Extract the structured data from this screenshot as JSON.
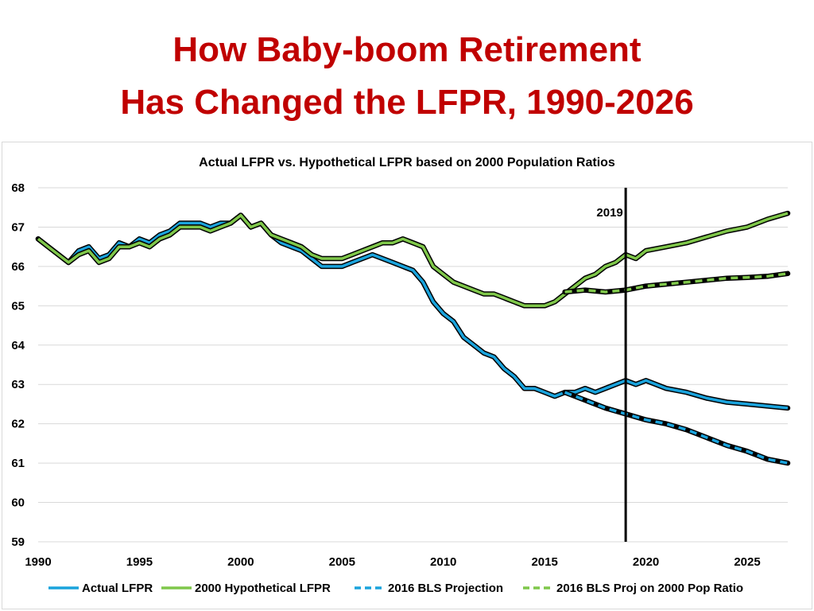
{
  "slide": {
    "title_line1": "How Baby-boom Retirement",
    "title_line2": "Has Changed the LFPR, 1990-2026"
  },
  "chart_data": {
    "type": "line",
    "subtitle": "Actual LFPR vs. Hypothetical LFPR based on 2000 Population Ratios",
    "xlabel": "",
    "ylabel": "",
    "xlim": [
      1990,
      2027
    ],
    "ylim": [
      59,
      68
    ],
    "x_ticks": [
      1990,
      1995,
      2000,
      2005,
      2010,
      2015,
      2020,
      2025
    ],
    "y_ticks": [
      59,
      60,
      61,
      62,
      63,
      64,
      65,
      66,
      67,
      68
    ],
    "grid": "horizontal",
    "legend_position": "bottom",
    "vline": {
      "x": 2019,
      "label": "2019"
    },
    "series": [
      {
        "name": "Actual LFPR",
        "color": "#1aa3dc",
        "style": "solid",
        "x": [
          1990.0,
          1990.5,
          1991.0,
          1991.5,
          1992.0,
          1992.5,
          1993.0,
          1993.5,
          1994.0,
          1994.5,
          1995.0,
          1995.5,
          1996.0,
          1996.5,
          1997.0,
          1997.5,
          1998.0,
          1998.5,
          1999.0,
          1999.5,
          2000.0,
          2000.5,
          2001.0,
          2001.5,
          2002.0,
          2002.5,
          2003.0,
          2003.5,
          2004.0,
          2004.5,
          2005.0,
          2005.5,
          2006.0,
          2006.5,
          2007.0,
          2007.5,
          2008.0,
          2008.5,
          2009.0,
          2009.5,
          2010.0,
          2010.5,
          2011.0,
          2011.5,
          2012.0,
          2012.5,
          2013.0,
          2013.5,
          2014.0,
          2014.5,
          2015.0,
          2015.5,
          2016.0,
          2016.5,
          2017.0,
          2017.5,
          2018.0,
          2018.5,
          2019.0,
          2019.5,
          2020.0,
          2021.0,
          2022.0,
          2023.0,
          2024.0,
          2025.0,
          2026.0,
          2027.0
        ],
        "values": [
          66.7,
          66.5,
          66.3,
          66.1,
          66.4,
          66.5,
          66.2,
          66.3,
          66.6,
          66.5,
          66.7,
          66.6,
          66.8,
          66.9,
          67.1,
          67.1,
          67.1,
          67.0,
          67.1,
          67.1,
          67.3,
          67.0,
          67.1,
          66.8,
          66.6,
          66.5,
          66.4,
          66.2,
          66.0,
          66.0,
          66.0,
          66.1,
          66.2,
          66.3,
          66.2,
          66.1,
          66.0,
          65.9,
          65.6,
          65.1,
          64.8,
          64.6,
          64.2,
          64.0,
          63.8,
          63.7,
          63.4,
          63.2,
          62.9,
          62.9,
          62.8,
          62.7,
          62.8,
          62.8,
          62.9,
          62.8,
          62.9,
          63.0,
          63.1,
          63.0,
          63.1,
          62.9,
          62.8,
          62.65,
          62.55,
          62.5,
          62.45,
          62.4
        ]
      },
      {
        "name": "2000 Hypothetical LFPR",
        "color": "#7fc74a",
        "style": "solid",
        "x": [
          1990.0,
          1990.5,
          1991.0,
          1991.5,
          1992.0,
          1992.5,
          1993.0,
          1993.5,
          1994.0,
          1994.5,
          1995.0,
          1995.5,
          1996.0,
          1996.5,
          1997.0,
          1997.5,
          1998.0,
          1998.5,
          1999.0,
          1999.5,
          2000.0,
          2000.5,
          2001.0,
          2001.5,
          2002.0,
          2002.5,
          2003.0,
          2003.5,
          2004.0,
          2004.5,
          2005.0,
          2005.5,
          2006.0,
          2006.5,
          2007.0,
          2007.5,
          2008.0,
          2008.5,
          2009.0,
          2009.5,
          2010.0,
          2010.5,
          2011.0,
          2011.5,
          2012.0,
          2012.5,
          2013.0,
          2013.5,
          2014.0,
          2014.5,
          2015.0,
          2015.5,
          2016.0,
          2016.5,
          2017.0,
          2017.5,
          2018.0,
          2018.5,
          2019.0,
          2019.5,
          2020.0,
          2021.0,
          2022.0,
          2023.0,
          2024.0,
          2025.0,
          2026.0,
          2027.0
        ],
        "values": [
          66.7,
          66.5,
          66.3,
          66.1,
          66.3,
          66.4,
          66.1,
          66.2,
          66.5,
          66.5,
          66.6,
          66.5,
          66.7,
          66.8,
          67.0,
          67.0,
          67.0,
          66.9,
          67.0,
          67.1,
          67.3,
          67.0,
          67.1,
          66.8,
          66.7,
          66.6,
          66.5,
          66.3,
          66.2,
          66.2,
          66.2,
          66.3,
          66.4,
          66.5,
          66.6,
          66.6,
          66.7,
          66.6,
          66.5,
          66.0,
          65.8,
          65.6,
          65.5,
          65.4,
          65.3,
          65.3,
          65.2,
          65.1,
          65.0,
          65.0,
          65.0,
          65.1,
          65.3,
          65.5,
          65.7,
          65.8,
          66.0,
          66.1,
          66.3,
          66.2,
          66.4,
          66.5,
          66.6,
          66.75,
          66.9,
          67.0,
          67.2,
          67.35
        ]
      },
      {
        "name": "2016 BLS Projection",
        "color": "#1aa3dc",
        "style": "dashed",
        "x": [
          2016.0,
          2017.0,
          2018.0,
          2019.0,
          2020.0,
          2021.0,
          2022.0,
          2023.0,
          2024.0,
          2025.0,
          2026.0,
          2027.0
        ],
        "values": [
          62.8,
          62.6,
          62.4,
          62.25,
          62.1,
          62.0,
          61.85,
          61.65,
          61.45,
          61.3,
          61.1,
          61.0
        ]
      },
      {
        "name": "2016 BLS Proj on 2000 Pop Ratio",
        "color": "#7fc74a",
        "style": "dashed",
        "x": [
          2016.0,
          2017.0,
          2018.0,
          2019.0,
          2020.0,
          2021.0,
          2022.0,
          2023.0,
          2024.0,
          2025.0,
          2026.0,
          2027.0
        ],
        "values": [
          65.35,
          65.4,
          65.35,
          65.4,
          65.5,
          65.55,
          65.6,
          65.65,
          65.7,
          65.72,
          65.75,
          65.82
        ]
      }
    ]
  }
}
